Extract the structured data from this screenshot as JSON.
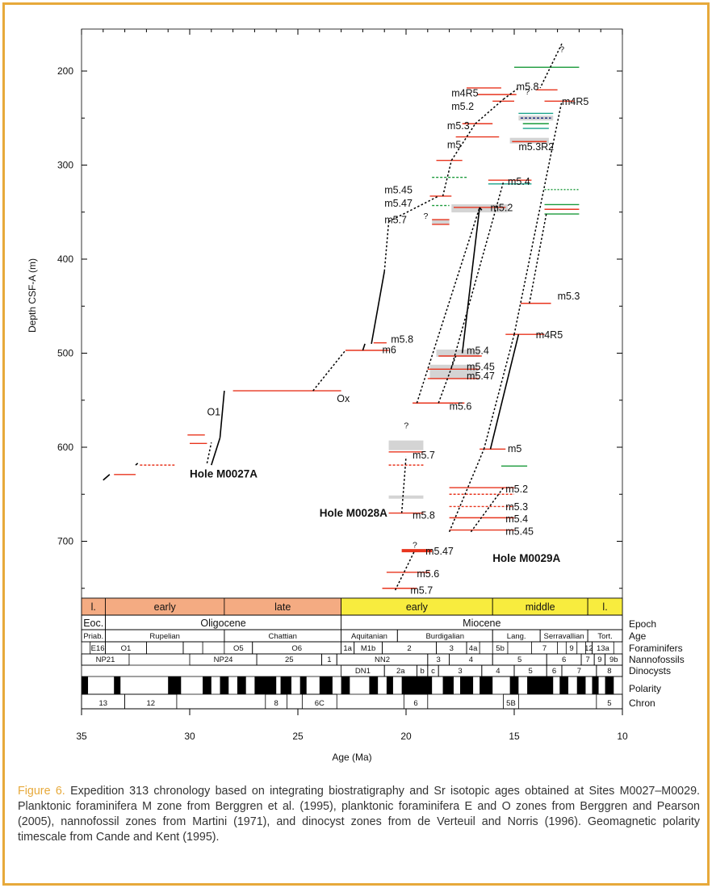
{
  "chart_data": {
    "type": "scatter",
    "xlabel": "Age (Ma)",
    "ylabel": "Depth CSF-A (m)",
    "xlim": [
      35,
      10
    ],
    "ylim": [
      160,
      760
    ],
    "x_ticks": [
      "35",
      "30",
      "25",
      "20",
      "15",
      "10"
    ],
    "y_ticks": [
      "200",
      "300",
      "400",
      "500",
      "600",
      "700"
    ],
    "holes": [
      {
        "name": "Hole M0027A",
        "label": "Hole M0027A",
        "picks": [
          {
            "label": "O1",
            "age": 29.8,
            "depth": 590
          },
          {
            "label": "Ox",
            "age": 24.5,
            "depth": 540
          },
          {
            "label": "m6",
            "age": 21.6,
            "depth": 497
          },
          {
            "label": "m5.8",
            "age": 21.0,
            "depth": 489
          }
        ]
      },
      {
        "name": "Hole M0028A",
        "label": "Hole M0028A",
        "picks": [
          {
            "label": "m5.45",
            "age": 18.6,
            "depth": 333
          },
          {
            "label": "m5.47",
            "age": 18.7,
            "depth": 343
          },
          {
            "label": "m5.7",
            "age": 19.0,
            "depth": 360
          },
          {
            "label": "m5.4",
            "age": 17.0,
            "depth": 504
          },
          {
            "label": "m5.45",
            "age": 17.5,
            "depth": 517
          },
          {
            "label": "m5.47",
            "age": 17.5,
            "depth": 527
          },
          {
            "label": "m5.6",
            "age": 18.5,
            "depth": 553
          },
          {
            "label": "m5.7",
            "age": 20.0,
            "depth": 605
          },
          {
            "label": "m5.8",
            "age": 20.4,
            "depth": 670
          }
        ]
      },
      {
        "name": "Hole M0029A",
        "label": "Hole M0029A",
        "picks": [
          {
            "label": "m4R5",
            "age": 14.0,
            "depth": 220
          },
          {
            "label": "m5.2",
            "age": 15.8,
            "depth": 225
          },
          {
            "label": "m5.3",
            "age": 15.5,
            "depth": 235
          },
          {
            "label": "m5.3R2",
            "age": 17.0,
            "depth": 255
          },
          {
            "label": "m5",
            "age": 14.5,
            "depth": 275
          },
          {
            "label": "m5.4",
            "age": 17.0,
            "depth": 270
          },
          {
            "label": "m5.2",
            "age": 15.5,
            "depth": 318
          },
          {
            "label": "m5.3",
            "age": 16.5,
            "depth": 345
          },
          {
            "label": "m4R5",
            "age": 14.3,
            "depth": 447
          },
          {
            "label": "m5",
            "age": 14.8,
            "depth": 480
          },
          {
            "label": "m5.2",
            "age": 16.1,
            "depth": 602
          },
          {
            "label": "m5.3",
            "age": 16.4,
            "depth": 643
          },
          {
            "label": "m5.4",
            "age": 16.6,
            "depth": 663
          },
          {
            "label": "m5.45",
            "age": 16.6,
            "depth": 675
          },
          {
            "label": "m5.47",
            "age": 16.6,
            "depth": 688
          },
          {
            "label": "m5.6",
            "age": 19.4,
            "depth": 710
          },
          {
            "label": "m5.7",
            "age": 19.6,
            "depth": 733
          },
          {
            "label": "m5.8",
            "age": 19.8,
            "depth": 750
          },
          {
            "label": "m4R5",
            "age": 12.8,
            "depth": 232
          }
        ]
      }
    ],
    "question_marks": [
      {
        "label": "?",
        "age": 12.8,
        "depth": 171
      },
      {
        "label": "?",
        "age": 14.2,
        "depth": 222
      },
      {
        "label": "?",
        "age": 19.0,
        "depth": 352
      },
      {
        "label": "?",
        "age": 20.0,
        "depth": 577
      },
      {
        "label": "?",
        "age": 19.6,
        "depth": 703
      }
    ],
    "timescale": {
      "subepochs": [
        {
          "label": "l.",
          "from": 35,
          "to": 33.9,
          "color": "#f4ab82"
        },
        {
          "label": "early",
          "from": 33.9,
          "to": 28.4,
          "color": "#f4ab82"
        },
        {
          "label": "late",
          "from": 28.4,
          "to": 23.0,
          "color": "#f4ab82"
        },
        {
          "label": "early",
          "from": 23.0,
          "to": 16.0,
          "color": "#f8ec3e"
        },
        {
          "label": "middle",
          "from": 16.0,
          "to": 11.6,
          "color": "#f8ec3e"
        },
        {
          "label": "l.",
          "from": 11.6,
          "to": 10.0,
          "color": "#f8ec3e"
        }
      ],
      "epochs": [
        {
          "label": "Eoc.",
          "from": 35,
          "to": 33.9
        },
        {
          "label": "Oligocene",
          "from": 33.9,
          "to": 23.0
        },
        {
          "label": "Miocene",
          "from": 23.0,
          "to": 10.0
        }
      ],
      "ages": [
        {
          "label": "Priab.",
          "from": 35,
          "to": 33.9
        },
        {
          "label": "Rupelian",
          "from": 33.9,
          "to": 28.4
        },
        {
          "label": "Chattian",
          "from": 28.4,
          "to": 23.0
        },
        {
          "label": "Aquitanian",
          "from": 23.0,
          "to": 20.4
        },
        {
          "label": "Burdigalian",
          "from": 20.4,
          "to": 16.0
        },
        {
          "label": "Lang.",
          "from": 16.0,
          "to": 13.8
        },
        {
          "label": "Serravallian",
          "from": 13.8,
          "to": 11.6
        },
        {
          "label": "Tort.",
          "from": 11.6,
          "to": 10.0
        }
      ],
      "foraminifers": [
        {
          "label": "E16",
          "from": 34.6,
          "to": 33.9
        },
        {
          "label": "O1",
          "from": 33.9,
          "to": 32.0
        },
        {
          "label": "",
          "from": 32.0,
          "to": 30.3
        },
        {
          "label": "",
          "from": 30.3,
          "to": 29.4
        },
        {
          "label": "O5",
          "from": 28.4,
          "to": 27.1
        },
        {
          "label": "O6",
          "from": 27.1,
          "to": 23.0
        },
        {
          "label": "1a",
          "from": 23.0,
          "to": 22.4
        },
        {
          "label": "M1b",
          "from": 22.4,
          "to": 21.1
        },
        {
          "label": "2",
          "from": 21.1,
          "to": 18.6
        },
        {
          "label": "3",
          "from": 18.6,
          "to": 17.2
        },
        {
          "label": "4a",
          "from": 17.2,
          "to": 16.6
        },
        {
          "label": "5b",
          "from": 16.0,
          "to": 15.3
        },
        {
          "label": "7",
          "from": 14.2,
          "to": 13.0
        },
        {
          "label": "9",
          "from": 12.6,
          "to": 12.1
        },
        {
          "label": "12",
          "from": 11.7,
          "to": 11.4
        },
        {
          "label": "13a",
          "from": 11.4,
          "to": 10.4
        }
      ],
      "nannofossils": [
        {
          "label": "NP21",
          "from": 35,
          "to": 32.8
        },
        {
          "label": "NP24",
          "from": 30.0,
          "to": 26.9
        },
        {
          "label": "25",
          "from": 26.9,
          "to": 23.9
        },
        {
          "label": "1",
          "from": 23.9,
          "to": 23.2
        },
        {
          "label": "NN2",
          "from": 23.2,
          "to": 19.0
        },
        {
          "label": "3",
          "from": 19.0,
          "to": 18.0
        },
        {
          "label": "4",
          "from": 18.0,
          "to": 16.0
        },
        {
          "label": "5",
          "from": 16.0,
          "to": 13.5
        },
        {
          "label": "6",
          "from": 13.5,
          "to": 11.9
        },
        {
          "label": "7",
          "from": 11.9,
          "to": 11.3
        },
        {
          "label": "9",
          "from": 11.3,
          "to": 10.8
        },
        {
          "label": "9b",
          "from": 10.8,
          "to": 10.0
        }
      ],
      "dinocysts": [
        {
          "label": "DN1",
          "from": 23.0,
          "to": 21.0
        },
        {
          "label": "2a",
          "from": 21.0,
          "to": 19.5
        },
        {
          "label": "b",
          "from": 19.5,
          "to": 19.0
        },
        {
          "label": "c",
          "from": 19.0,
          "to": 18.5
        },
        {
          "label": "3",
          "from": 18.5,
          "to": 16.5
        },
        {
          "label": "4",
          "from": 16.5,
          "to": 15.0
        },
        {
          "label": "5",
          "from": 15.0,
          "to": 13.5
        },
        {
          "label": "6",
          "from": 13.5,
          "to": 12.8
        },
        {
          "label": "7",
          "from": 12.8,
          "to": 11.2
        },
        {
          "label": "8",
          "from": 11.2,
          "to": 10.0
        }
      ],
      "chrons": [
        {
          "label": "13",
          "from": 35,
          "to": 33.0
        },
        {
          "label": "12",
          "from": 33.0,
          "to": 30.6
        },
        {
          "label": "8",
          "from": 26.5,
          "to": 25.5
        },
        {
          "label": "6C",
          "from": 24.8,
          "to": 23.2
        },
        {
          "label": "6",
          "from": 20.1,
          "to": 19.0
        },
        {
          "label": "5B",
          "from": 15.5,
          "to": 14.8
        },
        {
          "label": "5",
          "from": 11.2,
          "to": 10.0
        }
      ],
      "row_labels": [
        "Epoch",
        "Age",
        "Foraminifers",
        "Nannofossils",
        "Dinocysts",
        "Polarity",
        "Chron"
      ]
    },
    "colors": {
      "red": "#e8351e",
      "green": "#1a9a3a",
      "teal": "#19a38a",
      "grey": "#d4d4d4",
      "epoch_early_oligo": "#f4ab82",
      "miocene": "#f8ec3e"
    }
  },
  "caption": {
    "figure": "Figure 6.",
    "text": "Expedition 313 chronology based on integrating biostratigraphy and Sr isotopic ages obtained at Sites M0027–M0029. Planktonic foraminifera M zone from Berggren et al. (1995), planktonic foraminifera E and O zones from Berggren and Pearson (2005), nannofossil zones from Martini (1971), and dinocyst zones from de Verteuil and Norris (1996). Geomagnetic polarity timescale from Cande and Kent (1995)."
  }
}
